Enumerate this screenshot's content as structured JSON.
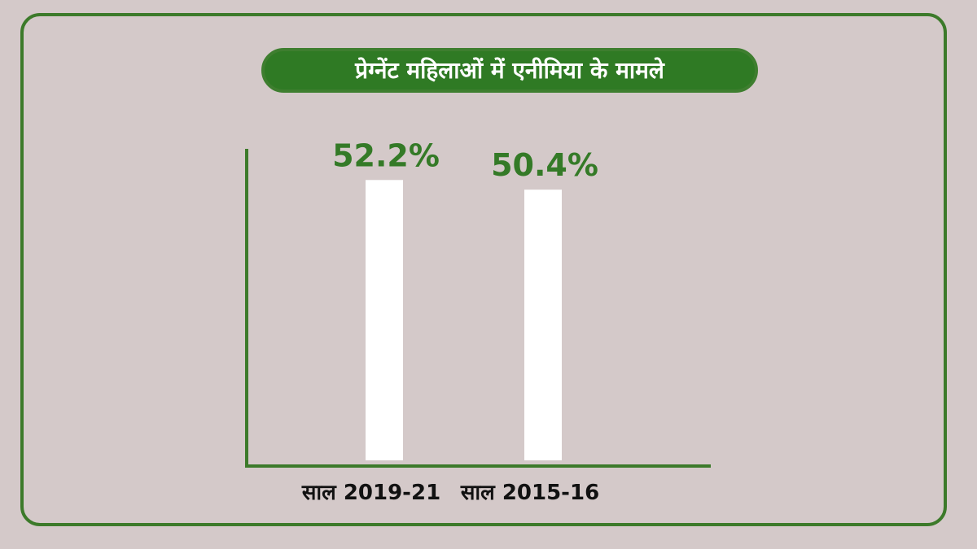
{
  "chart_data": {
    "type": "bar",
    "title": "प्रेग्नेंट महिलाओं में एनीमिया के मामले",
    "categories": [
      "साल 2019-21",
      "साल 2015-16"
    ],
    "values": [
      52.2,
      50.4
    ],
    "value_labels": [
      "52.2%",
      "50.4%"
    ],
    "ylim": [
      0,
      58
    ],
    "grid": false,
    "legend": "none",
    "colors": {
      "bar": "#ffffff",
      "accent": "#347a27",
      "background": "#d4c9c9"
    }
  }
}
